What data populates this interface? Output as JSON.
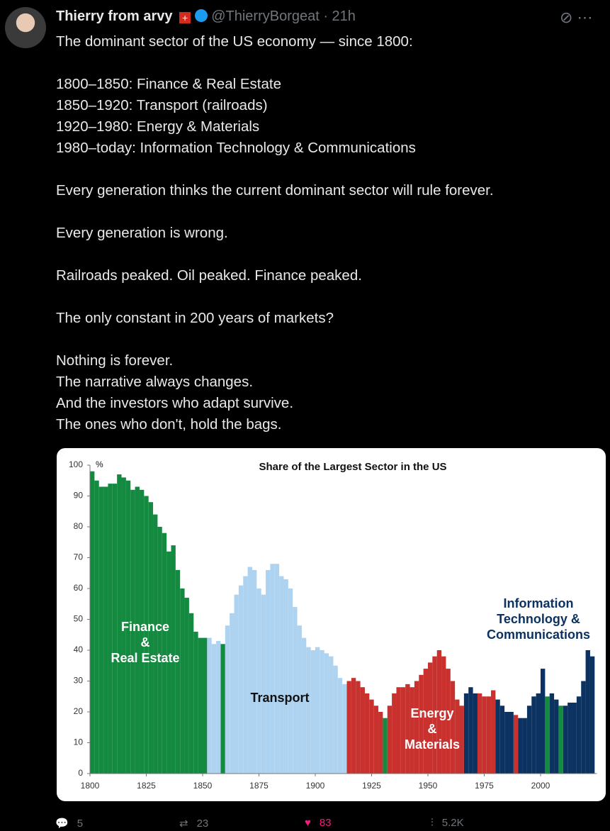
{
  "header": {
    "name": "Thierry from arvy",
    "handle": "@ThierryBorgeat",
    "time": "· 21h"
  },
  "body": [
    [
      "The dominant sector of the US economy — since 1800:"
    ],
    [
      "1800–1850: Finance & Real Estate",
      "1850–1920: Transport (railroads)",
      "1920–1980: Energy & Materials",
      "1980–today: Information Technology & Communications"
    ],
    [
      "Every generation thinks the current dominant sector will rule forever."
    ],
    [
      "Every generation is wrong."
    ],
    [
      "Railroads peaked. Oil peaked. Finance peaked."
    ],
    [
      "The only constant in 200 years of markets?"
    ],
    [
      "Nothing is forever.",
      "The narrative always changes.",
      "And the investors who adapt survive.",
      "The ones who don't, hold the bags."
    ]
  ],
  "chart_data": {
    "type": "bar",
    "title": "Share of the Largest Sector in the US",
    "y_unit": "%",
    "xlim": [
      1800,
      2025
    ],
    "xticks": [
      1800,
      1825,
      1850,
      1875,
      1900,
      1925,
      1950,
      1975,
      2000
    ],
    "ylim": [
      0,
      100
    ],
    "yticks": [
      0,
      10,
      20,
      30,
      40,
      50,
      60,
      70,
      80,
      90,
      100
    ],
    "series": [
      {
        "name": "Finance & Real Estate",
        "color": "#138a3f",
        "x": [
          1800,
          1802,
          1804,
          1806,
          1808,
          1810,
          1812,
          1814,
          1816,
          1818,
          1820,
          1822,
          1824,
          1826,
          1828,
          1830,
          1832,
          1834,
          1836,
          1838,
          1840,
          1842,
          1844,
          1846,
          1848,
          1850,
          1858,
          1930,
          2002,
          2008
        ],
        "values": [
          98,
          95,
          93,
          93,
          94,
          94,
          97,
          96,
          95,
          92,
          93,
          92,
          90,
          88,
          84,
          80,
          78,
          72,
          74,
          66,
          60,
          57,
          52,
          46,
          44,
          44,
          42,
          18,
          25,
          22
        ]
      },
      {
        "name": "Transport",
        "color": "#aed3f0",
        "x": [
          1852,
          1854,
          1856,
          1860,
          1862,
          1864,
          1866,
          1868,
          1870,
          1872,
          1874,
          1876,
          1878,
          1880,
          1882,
          1884,
          1886,
          1888,
          1890,
          1892,
          1894,
          1896,
          1898,
          1900,
          1902,
          1904,
          1906,
          1908,
          1910,
          1912
        ],
        "values": [
          44,
          42,
          43,
          48,
          52,
          58,
          61,
          64,
          67,
          66,
          60,
          58,
          66,
          68,
          68,
          64,
          63,
          60,
          54,
          48,
          44,
          41,
          40,
          41,
          40,
          39,
          38,
          35,
          31,
          29
        ]
      },
      {
        "name": "Energy & Materials",
        "color": "#c8312e",
        "x": [
          1914,
          1916,
          1918,
          1920,
          1922,
          1924,
          1926,
          1928,
          1932,
          1934,
          1936,
          1938,
          1940,
          1942,
          1944,
          1946,
          1948,
          1950,
          1952,
          1954,
          1956,
          1958,
          1960,
          1962,
          1964,
          1972,
          1974,
          1976,
          1978,
          1988
        ],
        "values": [
          30,
          31,
          30,
          28,
          26,
          24,
          22,
          20,
          22,
          26,
          28,
          28,
          29,
          28,
          30,
          32,
          34,
          36,
          38,
          40,
          38,
          34,
          30,
          24,
          22,
          26,
          25,
          25,
          27,
          19
        ]
      },
      {
        "name": "Information Technology & Communications",
        "color": "#0b3260",
        "x": [
          1966,
          1968,
          1970,
          1980,
          1982,
          1984,
          1986,
          1990,
          1992,
          1994,
          1996,
          1998,
          2000,
          2004,
          2006,
          2010,
          2012,
          2014,
          2016,
          2018,
          2020,
          2022
        ],
        "values": [
          26,
          28,
          26,
          24,
          22,
          20,
          20,
          18,
          18,
          22,
          25,
          26,
          34,
          26,
          24,
          22,
          23,
          23,
          25,
          30,
          40,
          38
        ]
      }
    ],
    "annotations": [
      {
        "lines": [
          "Finance",
          "&",
          "Real Estate"
        ],
        "color": "#ffffff"
      },
      {
        "lines": [
          "Transport"
        ],
        "color": "#111111"
      },
      {
        "lines": [
          "Energy",
          "&",
          "Materials"
        ],
        "color": "#ffffff"
      },
      {
        "lines": [
          "Information",
          "Technology &",
          "Communications"
        ],
        "color": "#0b3260"
      }
    ]
  },
  "footer": {
    "replies": "5",
    "reposts": "23",
    "likes": "83",
    "views": "5.2K"
  }
}
